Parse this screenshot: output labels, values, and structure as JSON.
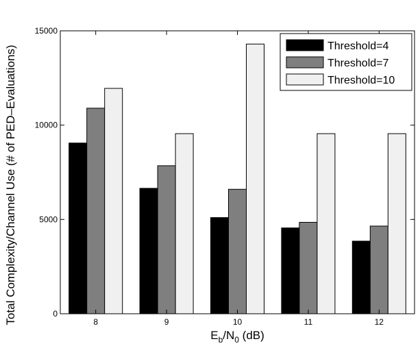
{
  "chart_data": {
    "type": "bar",
    "title": "",
    "xlabel": {
      "main": "E",
      "sub1": "b",
      "mid": "/N",
      "sub2": "0",
      "suffix": " (dB)"
    },
    "ylabel": "Total Complexity/Channel Use (# of PED–Evaluations)",
    "categories": [
      "8",
      "9",
      "10",
      "11",
      "12"
    ],
    "ylim": [
      0,
      15000
    ],
    "yticks": [
      0,
      5000,
      10000,
      15000
    ],
    "grid": false,
    "legend_position": "top-right",
    "series": [
      {
        "name": "Threshold=4",
        "color": "#000000",
        "values": [
          9050,
          6650,
          5100,
          4550,
          3850
        ]
      },
      {
        "name": "Threshold=7",
        "color": "#7f7f7f",
        "values": [
          10900,
          7850,
          6600,
          4850,
          4650
        ]
      },
      {
        "name": "Threshold=10",
        "color": "#f0f0f0",
        "values": [
          11950,
          9550,
          14300,
          9550,
          9550
        ]
      }
    ]
  }
}
